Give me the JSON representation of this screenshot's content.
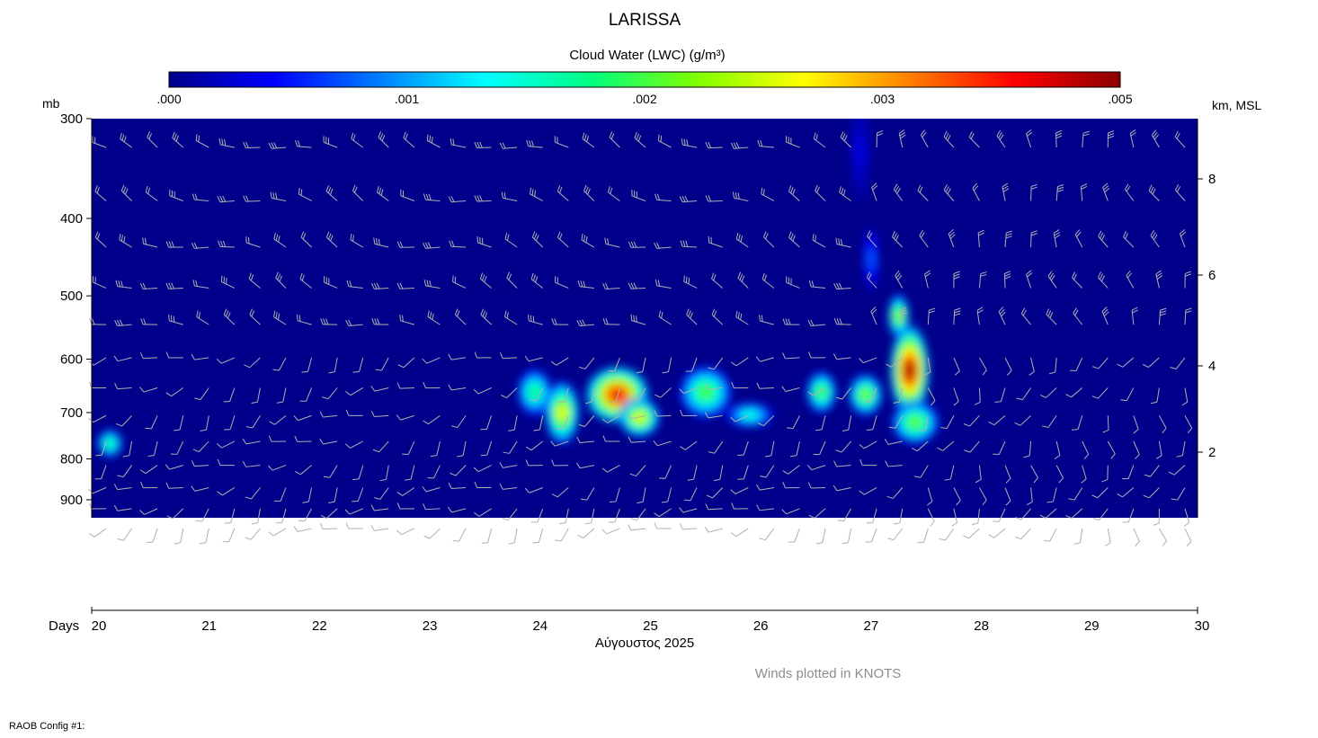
{
  "chart_data": {
    "type": "heatmap",
    "title": "LARISSA",
    "colorbar": {
      "label": "Cloud Water (LWC) (g/m³)",
      "tick_labels": [
        ".000",
        ".001",
        ".002",
        ".003",
        ".005"
      ],
      "colors": [
        "#00008b",
        "#0000ff",
        "#0080ff",
        "#00ffff",
        "#00ff80",
        "#80ff00",
        "#ffff00",
        "#ff8000",
        "#ff0000",
        "#8b0000"
      ]
    },
    "y_left": {
      "unit_label": "mb",
      "ticks": [
        "300",
        "400",
        "500",
        "600",
        "700",
        "800",
        "900"
      ],
      "scale": "log-pressure",
      "range_mb": [
        300,
        950
      ]
    },
    "y_right": {
      "unit_label": "km, MSL",
      "ticks": [
        "8",
        "6",
        "4",
        "2"
      ]
    },
    "x_axis": {
      "prefix_label": "Days",
      "ticks": [
        "20",
        "21",
        "22",
        "23",
        "24",
        "25",
        "26",
        "27",
        "28",
        "29",
        "30"
      ],
      "month_label": "Αύγουστος 2025"
    },
    "cloud_water_features": [
      {
        "day": 20.1,
        "pressure_mb": 765,
        "lwc": 0.0021,
        "spread_day": 0.08,
        "spread_mb": 25
      },
      {
        "day": 23.95,
        "pressure_mb": 660,
        "lwc": 0.0022,
        "spread_day": 0.12,
        "spread_mb": 40
      },
      {
        "day": 24.2,
        "pressure_mb": 700,
        "lwc": 0.0032,
        "spread_day": 0.12,
        "spread_mb": 60
      },
      {
        "day": 24.7,
        "pressure_mb": 665,
        "lwc": 0.0045,
        "spread_day": 0.25,
        "spread_mb": 50
      },
      {
        "day": 24.9,
        "pressure_mb": 710,
        "lwc": 0.0032,
        "spread_day": 0.15,
        "spread_mb": 35
      },
      {
        "day": 25.5,
        "pressure_mb": 660,
        "lwc": 0.0025,
        "spread_day": 0.2,
        "spread_mb": 45
      },
      {
        "day": 25.9,
        "pressure_mb": 705,
        "lwc": 0.0018,
        "spread_day": 0.18,
        "spread_mb": 20
      },
      {
        "day": 26.55,
        "pressure_mb": 660,
        "lwc": 0.0025,
        "spread_day": 0.1,
        "spread_mb": 35
      },
      {
        "day": 26.95,
        "pressure_mb": 665,
        "lwc": 0.0027,
        "spread_day": 0.12,
        "spread_mb": 35
      },
      {
        "day": 27.35,
        "pressure_mb": 620,
        "lwc": 0.0048,
        "spread_day": 0.14,
        "spread_mb": 80
      },
      {
        "day": 27.4,
        "pressure_mb": 720,
        "lwc": 0.0026,
        "spread_day": 0.18,
        "spread_mb": 40
      },
      {
        "day": 27.25,
        "pressure_mb": 530,
        "lwc": 0.0028,
        "spread_day": 0.06,
        "spread_mb": 30
      },
      {
        "day": 27.0,
        "pressure_mb": 450,
        "lwc": 0.0009,
        "spread_day": 0.04,
        "spread_mb": 40
      },
      {
        "day": 26.9,
        "pressure_mb": 330,
        "lwc": 0.0004,
        "spread_day": 0.06,
        "spread_mb": 50
      }
    ],
    "winds_note": "Winds plotted in KNOTS"
  },
  "footer": {
    "config_label": "RAOB Config #1:"
  }
}
